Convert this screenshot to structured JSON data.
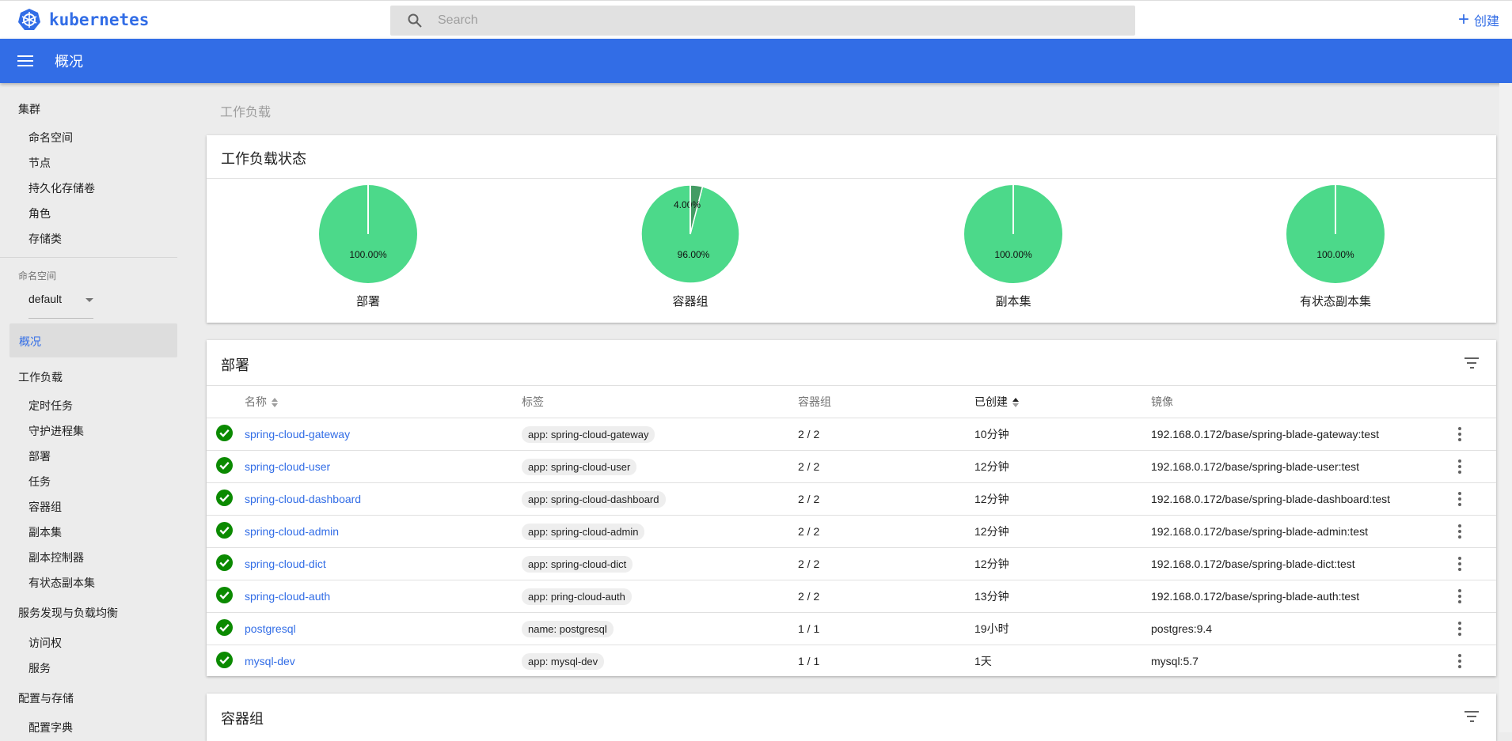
{
  "header": {
    "brand": "kubernetes",
    "search_placeholder": "Search",
    "create_label": "创建",
    "page_title": "概况"
  },
  "sidebar": {
    "cluster": {
      "label": "集群",
      "items": [
        "命名空间",
        "节点",
        "持久化存储卷",
        "角色",
        "存储类"
      ]
    },
    "namespace": {
      "label": "命名空间",
      "selected": "default"
    },
    "overview": "概况",
    "workloads": {
      "label": "工作负载",
      "items": [
        "定时任务",
        "守护进程集",
        "部署",
        "任务",
        "容器组",
        "副本集",
        "副本控制器",
        "有状态副本集"
      ]
    },
    "discovery": {
      "label": "服务发现与负载均衡",
      "items": [
        "访问权",
        "服务"
      ]
    },
    "config": {
      "label": "配置与存储",
      "items": [
        "配置字典"
      ]
    }
  },
  "breadcrumb": "工作负载",
  "workload_status": {
    "title": "工作负载状态",
    "colors": {
      "running": "#4cd98a",
      "pending": "#449c64"
    },
    "charts": [
      {
        "label": "部署",
        "slices": [
          {
            "value": 100,
            "text": "100.00%",
            "status": "running"
          }
        ]
      },
      {
        "label": "容器组",
        "slices": [
          {
            "value": 96,
            "text": "96.00%",
            "status": "running"
          },
          {
            "value": 4,
            "text": "4.00%",
            "status": "pending"
          }
        ]
      },
      {
        "label": "副本集",
        "slices": [
          {
            "value": 100,
            "text": "100.00%",
            "status": "running"
          }
        ]
      },
      {
        "label": "有状态副本集",
        "slices": [
          {
            "value": 100,
            "text": "100.00%",
            "status": "running"
          }
        ]
      }
    ]
  },
  "deployments": {
    "title": "部署",
    "columns": {
      "name": "名称",
      "labels": "标签",
      "pods": "容器组",
      "created": "已创建",
      "image": "镜像"
    },
    "rows": [
      {
        "name": "spring-cloud-gateway",
        "label": "app: spring-cloud-gateway",
        "pods": "2 / 2",
        "created": "10分钟",
        "image": "192.168.0.172/base/spring-blade-gateway:test"
      },
      {
        "name": "spring-cloud-user",
        "label": "app: spring-cloud-user",
        "pods": "2 / 2",
        "created": "12分钟",
        "image": "192.168.0.172/base/spring-blade-user:test"
      },
      {
        "name": "spring-cloud-dashboard",
        "label": "app: spring-cloud-dashboard",
        "pods": "2 / 2",
        "created": "12分钟",
        "image": "192.168.0.172/base/spring-blade-dashboard:test"
      },
      {
        "name": "spring-cloud-admin",
        "label": "app: spring-cloud-admin",
        "pods": "2 / 2",
        "created": "12分钟",
        "image": "192.168.0.172/base/spring-blade-admin:test"
      },
      {
        "name": "spring-cloud-dict",
        "label": "app: spring-cloud-dict",
        "pods": "2 / 2",
        "created": "12分钟",
        "image": "192.168.0.172/base/spring-blade-dict:test"
      },
      {
        "name": "spring-cloud-auth",
        "label": "app: pring-cloud-auth",
        "pods": "2 / 2",
        "created": "13分钟",
        "image": "192.168.0.172/base/spring-blade-auth:test"
      },
      {
        "name": "postgresql",
        "label": "name: postgresql",
        "pods": "1 / 1",
        "created": "19小时",
        "image": "postgres:9.4"
      },
      {
        "name": "mysql-dev",
        "label": "app: mysql-dev",
        "pods": "1 / 1",
        "created": "1天",
        "image": "mysql:5.7"
      }
    ]
  },
  "pods": {
    "title": "容器组"
  }
}
